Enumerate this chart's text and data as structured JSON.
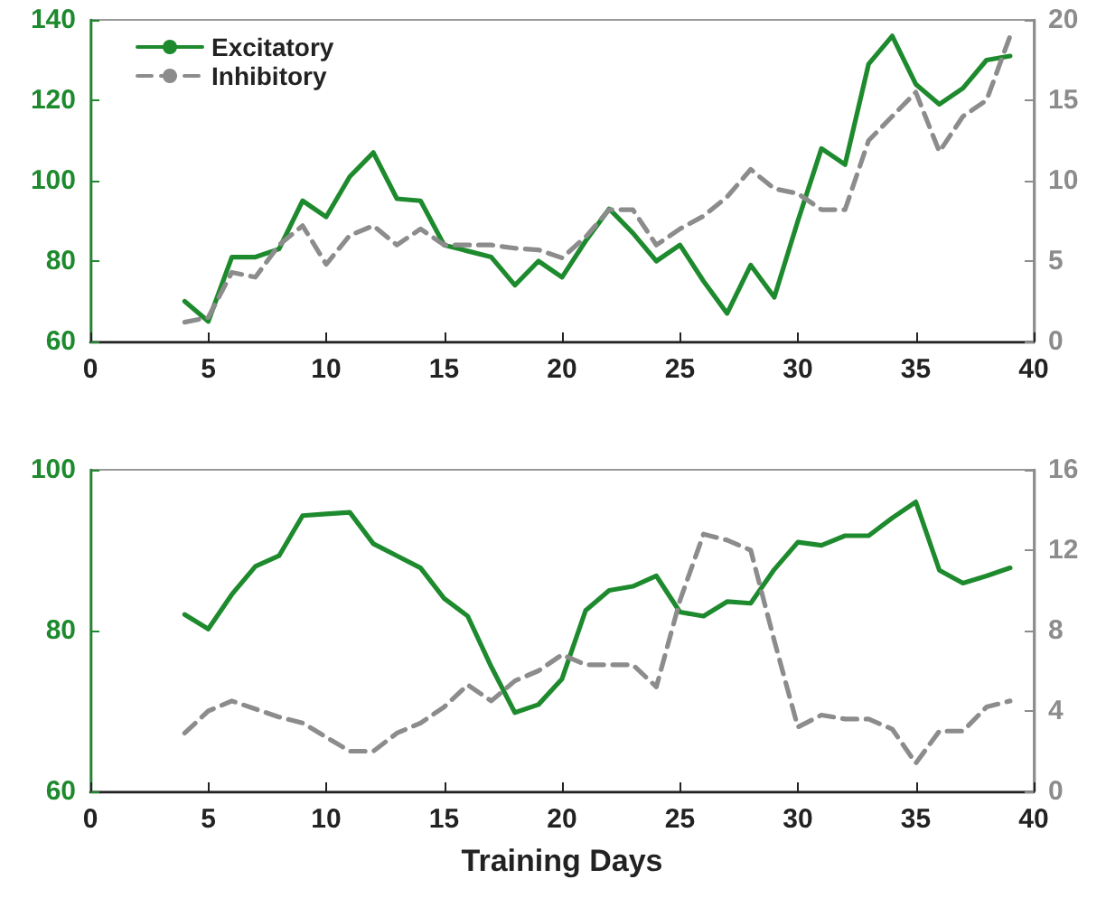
{
  "chart_data": [
    {
      "type": "line",
      "x": [
        4,
        5,
        6,
        7,
        8,
        9,
        10,
        11,
        12,
        13,
        14,
        15,
        16,
        17,
        18,
        19,
        20,
        21,
        22,
        23,
        24,
        25,
        26,
        27,
        28,
        29,
        30,
        31,
        32,
        33,
        34,
        35,
        36,
        37,
        38,
        39
      ],
      "xlim": [
        0,
        40
      ],
      "xticks": [
        0,
        5,
        10,
        15,
        20,
        25,
        30,
        35,
        40
      ],
      "ylim": [
        60,
        140
      ],
      "yticks": [
        60,
        80,
        100,
        120,
        140
      ],
      "y2lim": [
        0,
        20
      ],
      "y2ticks": [
        0,
        5,
        10,
        15,
        20
      ],
      "legend": "top left",
      "grid": false,
      "marker": "none",
      "series": [
        {
          "name": "Excitatory",
          "color": "#1e8a2e",
          "line_style": "solid",
          "values": [
            70,
            65,
            81,
            81,
            83,
            95,
            91,
            101,
            107,
            95.5,
            95,
            84,
            82.5,
            81,
            74,
            80,
            76,
            85,
            93,
            87,
            80,
            84,
            75,
            67,
            79,
            71,
            90,
            108,
            104,
            129,
            136,
            124,
            119,
            123,
            130,
            131
          ]
        },
        {
          "name": "Inhibitory",
          "color": "#8c8c8c",
          "line_style": "dashed",
          "axis": "y2",
          "values": [
            1.2,
            1.5,
            4.3,
            4,
            6,
            7.2,
            4.8,
            6.6,
            7.2,
            6,
            7,
            6,
            6,
            6,
            5.8,
            5.7,
            5.2,
            6.5,
            8.2,
            8.2,
            6,
            7,
            7.8,
            9,
            10.7,
            9.5,
            9.2,
            8.2,
            8.2,
            12.5,
            14,
            15.5,
            11.8,
            14,
            15,
            19
          ]
        }
      ]
    },
    {
      "type": "line",
      "xlabel": "Training Days",
      "x": [
        4,
        5,
        6,
        7,
        8,
        9,
        10,
        11,
        12,
        13,
        14,
        15,
        16,
        17,
        18,
        19,
        20,
        21,
        22,
        23,
        24,
        25,
        26,
        27,
        28,
        29,
        30,
        31,
        32,
        33,
        34,
        35,
        36,
        37,
        38,
        39
      ],
      "xlim": [
        0,
        40
      ],
      "xticks": [
        0,
        5,
        10,
        15,
        20,
        25,
        30,
        35,
        40
      ],
      "ylim": [
        60,
        100
      ],
      "yticks": [
        60,
        80,
        100
      ],
      "y2lim": [
        0,
        16
      ],
      "y2ticks": [
        0,
        4,
        8,
        12,
        16
      ],
      "grid": false,
      "marker": "none",
      "series": [
        {
          "color": "#1e8a2e",
          "line_style": "solid",
          "values": [
            82,
            80.2,
            84.5,
            88,
            89.3,
            94.3,
            94.5,
            94.7,
            90.8,
            89.3,
            87.8,
            84,
            81.8,
            75.5,
            69.8,
            70.8,
            74,
            82.5,
            85,
            85.5,
            86.8,
            82.3,
            81.8,
            83.6,
            83.4,
            87.6,
            91,
            90.6,
            91.8,
            91.8,
            94,
            96,
            87.5,
            85.9,
            86.8,
            87.8
          ]
        },
        {
          "color": "#8c8c8c",
          "line_style": "dashed",
          "axis": "y2",
          "values": [
            2.9,
            4,
            4.5,
            4.1,
            3.7,
            3.4,
            2.7,
            2,
            2,
            2.9,
            3.4,
            4.2,
            5.3,
            4.5,
            5.5,
            6,
            6.8,
            6.3,
            6.3,
            6.3,
            5.2,
            9.5,
            12.8,
            12.5,
            12,
            7.5,
            3.2,
            3.8,
            3.6,
            3.6,
            3.1,
            1.4,
            3,
            3,
            4.2,
            4.5
          ]
        }
      ]
    }
  ]
}
